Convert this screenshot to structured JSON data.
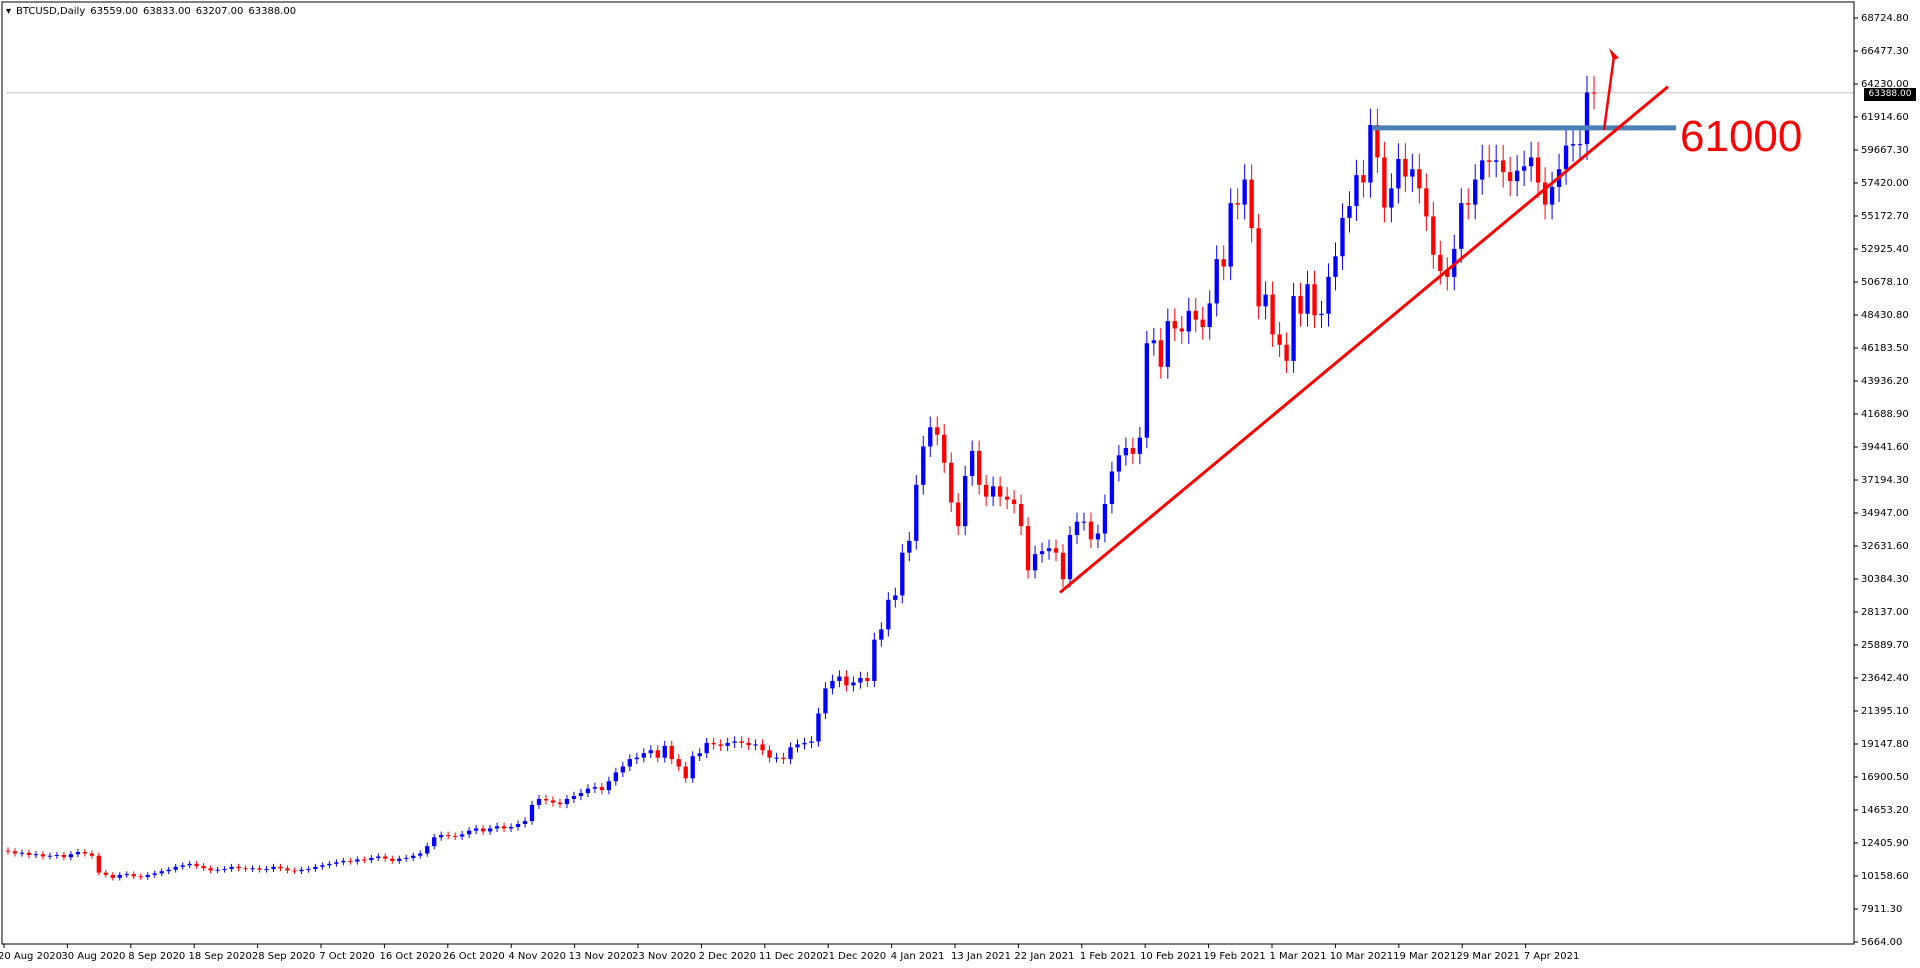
{
  "header": {
    "symbol": "BTCUSD,Daily",
    "open": "63559.00",
    "high": "63833.00",
    "low": "63207.00",
    "close": "63388.00"
  },
  "annotation": {
    "level_label": "61000"
  },
  "price_tag": "63388.00",
  "colors": {
    "bull": "#0000ff",
    "bear": "#ff0000",
    "trendline": "#ff0000",
    "resistance": "#4a7fb5",
    "axis": "#000000",
    "hline": "#c0c0c0"
  },
  "chart_data": {
    "type": "candlestick",
    "title": "",
    "xlabel": "",
    "ylabel": "",
    "ylim": [
      5664.0,
      68724.8
    ],
    "y_ticks": [
      "68724.80",
      "66477.30",
      "64230.00",
      "61914.60",
      "59667.30",
      "57420.00",
      "55172.70",
      "52925.40",
      "50678.10",
      "48430.80",
      "46183.50",
      "43936.20",
      "41688.90",
      "39441.60",
      "37194.30",
      "34947.00",
      "32631.60",
      "30384.30",
      "28137.00",
      "25889.70",
      "23642.40",
      "21395.10",
      "19147.80",
      "16900.50",
      "14653.20",
      "12405.90",
      "10158.60",
      "7911.30",
      "5664.00"
    ],
    "x_ticks": [
      "20 Aug 2020",
      "30 Aug 2020",
      "8 Sep 2020",
      "18 Sep 2020",
      "28 Sep 2020",
      "7 Oct 2020",
      "16 Oct 2020",
      "26 Oct 2020",
      "4 Nov 2020",
      "13 Nov 2020",
      "23 Nov 2020",
      "2 Dec 2020",
      "11 Dec 2020",
      "21 Dec 2020",
      "4 Jan 2021",
      "13 Jan 2021",
      "22 Jan 2021",
      "1 Feb 2021",
      "10 Feb 2021",
      "19 Feb 2021",
      "1 Mar 2021",
      "10 Mar 2021",
      "19 Mar 2021",
      "29 Mar 2021",
      "7 Apr 2021"
    ],
    "grid": false,
    "resistance_level": 61000,
    "trendline": {
      "from": [
        29500,
        "24 Jan 2021"
      ],
      "to": [
        63800,
        "20 Apr 2021"
      ]
    },
    "candles_close": [
      11950,
      11800,
      11850,
      11700,
      11750,
      11600,
      11650,
      11700,
      11550,
      11750,
      11900,
      11800,
      11650,
      10500,
      10350,
      10150,
      10350,
      10400,
      10250,
      10200,
      10350,
      10450,
      10600,
      10700,
      10900,
      11000,
      11100,
      10950,
      10800,
      10650,
      10700,
      10750,
      10900,
      10800,
      10750,
      10800,
      10700,
      10750,
      10900,
      10800,
      10650,
      10600,
      10700,
      10750,
      10900,
      11000,
      11100,
      11200,
      11300,
      11250,
      11400,
      11350,
      11500,
      11600,
      11450,
      11300,
      11450,
      11500,
      11650,
      11800,
      12300,
      12900,
      13050,
      13000,
      12950,
      13100,
      13350,
      13500,
      13300,
      13500,
      13650,
      13500,
      13600,
      13800,
      14000,
      15100,
      15500,
      15400,
      15250,
      15150,
      15500,
      15700,
      15900,
      16200,
      16300,
      16100,
      16700,
      17300,
      17700,
      18200,
      18300,
      18600,
      18800,
      18300,
      19100,
      18200,
      17700,
      16900,
      18400,
      18600,
      19300,
      19200,
      19100,
      19300,
      19400,
      19300,
      19150,
      19200,
      18800,
      18300,
      18300,
      18200,
      19000,
      19200,
      19300,
      19400,
      21300,
      23000,
      23500,
      23800,
      23200,
      23400,
      23700,
      23500,
      26300,
      27000,
      29000,
      29300,
      32200,
      33000,
      36800,
      39400,
      40700,
      40200,
      38300,
      35600,
      34000,
      37400,
      39100,
      36800,
      36000,
      36700,
      36000,
      35800,
      35500,
      34000,
      31000,
      32100,
      32300,
      32500,
      32200,
      30400,
      33400,
      34300,
      34300,
      33100,
      33500,
      35500,
      37700,
      38800,
      39300,
      38900,
      40000,
      46400,
      46600,
      44800,
      47900,
      47400,
      47200,
      48600,
      48000,
      47500,
      49100,
      52100,
      51600,
      55900,
      55800,
      57500,
      54200,
      48900,
      49700,
      47000,
      46300,
      45200,
      49600,
      48400,
      50400,
      48300,
      48400,
      50900,
      52300,
      54900,
      55700,
      57800,
      57300,
      61200,
      59000,
      55600,
      56900,
      58900,
      57700,
      58200,
      56900,
      55000,
      52400,
      51300,
      50900,
      52800,
      55900,
      55800,
      57500,
      58800,
      58700,
      58800,
      58000,
      57400,
      58100,
      58400,
      59000,
      57300,
      55800,
      57000,
      58200,
      59800,
      59900,
      59900,
      63400,
      63388
    ]
  }
}
